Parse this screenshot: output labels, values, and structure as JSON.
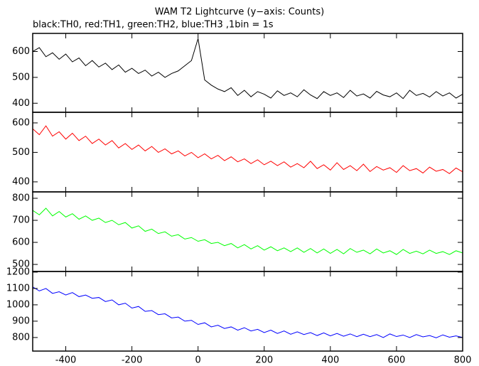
{
  "chart_data": [
    {
      "type": "line",
      "title": "WAM T2 Lightcurve (y−axis: Counts)",
      "subtitle": "black:TH0, red:TH1, green:TH2, blue:TH3 ,1bin = 1s",
      "x": [
        -500,
        -480,
        -460,
        -440,
        -420,
        -400,
        -380,
        -360,
        -340,
        -320,
        -300,
        -280,
        -260,
        -240,
        -220,
        -200,
        -180,
        -160,
        -140,
        -120,
        -100,
        -80,
        -60,
        -40,
        -20,
        0,
        20,
        40,
        60,
        80,
        100,
        120,
        140,
        160,
        180,
        200,
        220,
        240,
        260,
        280,
        300,
        320,
        340,
        360,
        380,
        400,
        420,
        440,
        460,
        480,
        500,
        520,
        540,
        560,
        580,
        600,
        620,
        640,
        660,
        680,
        700,
        720,
        740,
        760,
        780,
        800
      ],
      "series": [
        {
          "color": "#000000",
          "values": [
            600,
            615,
            580,
            595,
            570,
            590,
            560,
            575,
            545,
            565,
            540,
            555,
            530,
            548,
            520,
            535,
            515,
            528,
            505,
            520,
            500,
            515,
            525,
            545,
            565,
            650,
            490,
            470,
            455,
            445,
            460,
            430,
            450,
            425,
            445,
            435,
            420,
            448,
            430,
            440,
            425,
            452,
            432,
            418,
            445,
            430,
            440,
            422,
            450,
            428,
            436,
            420,
            446,
            432,
            425,
            440,
            418,
            450,
            430,
            438,
            424,
            445,
            428,
            440,
            420,
            435
          ]
        }
      ],
      "xlim": [
        -500,
        800
      ],
      "xticks": [
        -400,
        -200,
        0,
        200,
        400,
        600,
        800
      ],
      "ylim": [
        365,
        670
      ],
      "yticks": [
        400,
        500,
        600
      ]
    },
    {
      "type": "line",
      "x": [
        -500,
        -480,
        -460,
        -440,
        -420,
        -400,
        -380,
        -360,
        -340,
        -320,
        -300,
        -280,
        -260,
        -240,
        -220,
        -200,
        -180,
        -160,
        -140,
        -120,
        -100,
        -80,
        -60,
        -40,
        -20,
        0,
        20,
        40,
        60,
        80,
        100,
        120,
        140,
        160,
        180,
        200,
        220,
        240,
        260,
        280,
        300,
        320,
        340,
        360,
        380,
        400,
        420,
        440,
        460,
        480,
        500,
        520,
        540,
        560,
        580,
        600,
        620,
        640,
        660,
        680,
        700,
        720,
        740,
        760,
        780,
        800
      ],
      "series": [
        {
          "color": "#ff0000",
          "values": [
            580,
            560,
            590,
            555,
            570,
            545,
            565,
            540,
            555,
            530,
            545,
            525,
            540,
            515,
            530,
            510,
            525,
            505,
            520,
            500,
            512,
            495,
            505,
            488,
            500,
            482,
            495,
            478,
            490,
            472,
            485,
            468,
            478,
            462,
            475,
            458,
            470,
            455,
            468,
            450,
            462,
            448,
            470,
            445,
            458,
            440,
            465,
            442,
            455,
            438,
            460,
            435,
            452,
            440,
            448,
            432,
            455,
            438,
            445,
            430,
            450,
            436,
            442,
            428,
            447,
            434
          ]
        }
      ],
      "xlim": [
        -500,
        800
      ],
      "xticks": [
        -400,
        -200,
        0,
        200,
        400,
        600,
        800
      ],
      "ylim": [
        366,
        636
      ],
      "yticks": [
        400,
        500,
        600
      ]
    },
    {
      "type": "line",
      "x": [
        -500,
        -480,
        -460,
        -440,
        -420,
        -400,
        -380,
        -360,
        -340,
        -320,
        -300,
        -280,
        -260,
        -240,
        -220,
        -200,
        -180,
        -160,
        -140,
        -120,
        -100,
        -80,
        -60,
        -40,
        -20,
        0,
        20,
        40,
        60,
        80,
        100,
        120,
        140,
        160,
        180,
        200,
        220,
        240,
        260,
        280,
        300,
        320,
        340,
        360,
        380,
        400,
        420,
        440,
        460,
        480,
        500,
        520,
        540,
        560,
        580,
        600,
        620,
        640,
        660,
        680,
        700,
        720,
        740,
        760,
        780,
        800
      ],
      "series": [
        {
          "color": "#00ff00",
          "values": [
            745,
            725,
            755,
            720,
            740,
            715,
            730,
            705,
            720,
            700,
            710,
            690,
            700,
            680,
            690,
            665,
            675,
            650,
            660,
            640,
            648,
            628,
            635,
            615,
            622,
            605,
            612,
            595,
            600,
            585,
            595,
            575,
            590,
            570,
            585,
            565,
            580,
            562,
            575,
            558,
            575,
            555,
            572,
            552,
            570,
            550,
            568,
            548,
            572,
            555,
            565,
            548,
            570,
            552,
            562,
            545,
            568,
            550,
            560,
            548,
            565,
            550,
            558,
            545,
            562,
            552
          ]
        }
      ],
      "xlim": [
        -500,
        800
      ],
      "xticks": [
        -400,
        -200,
        0,
        200,
        400,
        600,
        800
      ],
      "ylim": [
        468,
        829
      ],
      "yticks": [
        500,
        600,
        700,
        800
      ]
    },
    {
      "type": "line",
      "x": [
        -500,
        -480,
        -460,
        -440,
        -420,
        -400,
        -380,
        -360,
        -340,
        -320,
        -300,
        -280,
        -260,
        -240,
        -220,
        -200,
        -180,
        -160,
        -140,
        -120,
        -100,
        -80,
        -60,
        -40,
        -20,
        0,
        20,
        40,
        60,
        80,
        100,
        120,
        140,
        160,
        180,
        200,
        220,
        240,
        260,
        280,
        300,
        320,
        340,
        360,
        380,
        400,
        420,
        440,
        460,
        480,
        500,
        520,
        540,
        560,
        580,
        600,
        620,
        640,
        660,
        680,
        700,
        720,
        740,
        760,
        780,
        800
      ],
      "series": [
        {
          "color": "#0000ff",
          "values": [
            1110,
            1085,
            1100,
            1070,
            1080,
            1060,
            1075,
            1050,
            1060,
            1040,
            1045,
            1020,
            1030,
            1000,
            1010,
            980,
            990,
            960,
            965,
            940,
            945,
            920,
            925,
            900,
            905,
            880,
            890,
            865,
            875,
            855,
            865,
            845,
            860,
            840,
            850,
            830,
            845,
            825,
            840,
            820,
            835,
            818,
            830,
            812,
            828,
            810,
            825,
            808,
            822,
            805,
            820,
            805,
            818,
            800,
            822,
            806,
            815,
            800,
            818,
            804,
            812,
            798,
            816,
            802,
            810,
            800
          ]
        }
      ],
      "xlim": [
        -500,
        800
      ],
      "xticks": [
        -400,
        -200,
        0,
        200,
        400,
        600,
        800
      ],
      "ylim": [
        717,
        1204
      ],
      "yticks": [
        800,
        900,
        1000,
        1100,
        1200
      ],
      "show_xtick_labels": true
    }
  ]
}
